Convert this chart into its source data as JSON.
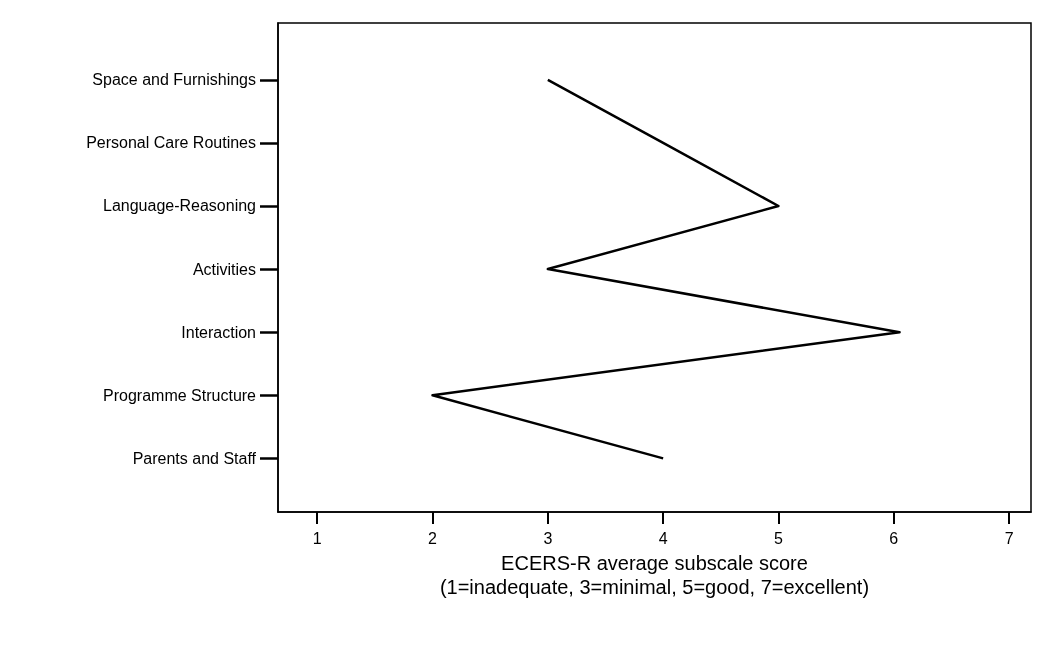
{
  "chart_data": {
    "type": "line",
    "orientation": "horizontal",
    "xlabel": "ECERS-R average subscale score\n(1=inadequate, 3=minimal, 5=good, 7=excellent)",
    "categories": [
      "Space and Furnishings",
      "Personal Care Routines",
      "Language-Reasoning",
      "Activities",
      "Interaction",
      "Programme Structure",
      "Parents and Staff"
    ],
    "values": [
      3,
      4,
      5,
      3,
      6.05,
      2,
      4
    ],
    "color": "#000000",
    "xlim": [
      0.66,
      7.19
    ],
    "xticks": [
      1,
      2,
      3,
      4,
      5,
      6,
      7
    ],
    "grid": false,
    "marker": "none",
    "line_style": "solid"
  }
}
